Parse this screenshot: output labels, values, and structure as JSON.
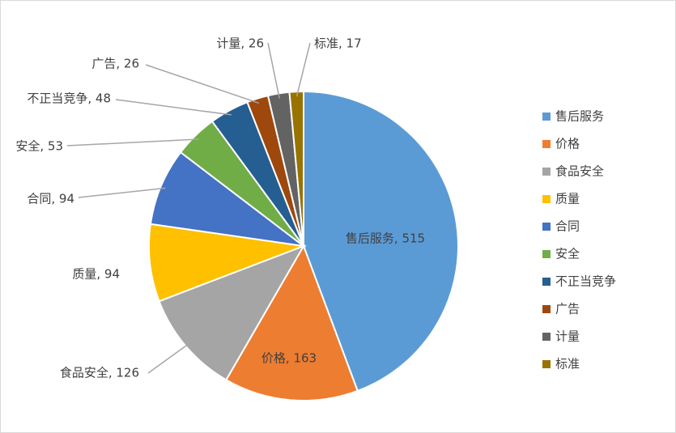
{
  "chart_data": {
    "type": "pie",
    "categories": [
      "售后服务",
      "价格",
      "食品安全",
      "质量",
      "合同",
      "安全",
      "不正当竞争",
      "广告",
      "计量",
      "标准"
    ],
    "values": [
      515,
      163,
      126,
      94,
      94,
      53,
      48,
      26,
      26,
      17
    ],
    "colors": [
      "#5b9bd5",
      "#ed7d31",
      "#a5a5a5",
      "#ffc000",
      "#4472c4",
      "#70ad47",
      "#255e91",
      "#9e480e",
      "#636363",
      "#997300"
    ],
    "data_labels": [
      "售后服务, 515",
      "价格, 163",
      "食品安全, 126",
      "质量, 94",
      "合同, 94",
      "安全, 53",
      "不正当竞争, 48",
      "广告, 26",
      "计量, 26",
      "标准, 17"
    ],
    "legend": {
      "placement": "right",
      "items": [
        "售后服务",
        "价格",
        "食品安全",
        "质量",
        "合同",
        "安全",
        "不正当竞争",
        "广告",
        "计量",
        "标准"
      ]
    },
    "title": ""
  }
}
